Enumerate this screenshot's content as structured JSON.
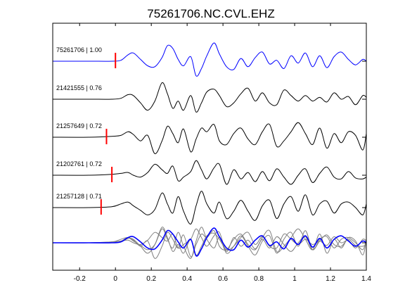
{
  "chart_data": {
    "type": "line",
    "title": "75261706.NC.CVL.EHZ",
    "xlabel": "",
    "ylabel": "",
    "xlim": [
      -0.35,
      1.4
    ],
    "x_ticks": [
      -0.2,
      0,
      0.2,
      0.4,
      0.6,
      0.8,
      1,
      1.2,
      1.4
    ],
    "x_tick_labels": [
      "-0.2",
      "0",
      "0.2",
      "0.4",
      "0.6",
      "0.8",
      "1",
      "1.2",
      "1.4"
    ],
    "grid": false,
    "colors": {
      "primary": "#0000ff",
      "secondary": "#000000",
      "stack": "#808080",
      "pick": "#ff0000"
    },
    "series": [
      {
        "name": "75261706 | 1.00",
        "pick_time": 0.0,
        "color": "#0000ff",
        "x": [
          -0.35,
          -0.15,
          -0.02,
          0.03,
          0.07,
          0.1,
          0.14,
          0.18,
          0.22,
          0.26,
          0.29,
          0.32,
          0.35,
          0.38,
          0.42,
          0.45,
          0.48,
          0.51,
          0.55,
          0.58,
          0.62,
          0.66,
          0.7,
          0.74,
          0.78,
          0.82,
          0.86,
          0.9,
          0.94,
          0.98,
          1.02,
          1.06,
          1.1,
          1.14,
          1.18,
          1.22,
          1.26,
          1.3,
          1.34,
          1.38,
          1.4
        ],
        "y": [
          0,
          0,
          0,
          0.05,
          0.35,
          0.45,
          0.1,
          -0.25,
          -0.3,
          0.2,
          0.85,
          0.7,
          0.1,
          -0.25,
          0.25,
          -0.8,
          -0.4,
          0.3,
          1.0,
          0.4,
          -0.3,
          -0.45,
          0.15,
          -0.3,
          0.2,
          0.5,
          -0.15,
          0.05,
          -0.4,
          0.3,
          -0.1,
          0.45,
          -0.3,
          0.3,
          -0.35,
          0.25,
          0.5,
          0.1,
          -0.2,
          0.1,
          0.0
        ]
      },
      {
        "name": "21421555 | 0.76",
        "pick_time": null,
        "color": "#000000",
        "x": [
          -0.35,
          -0.15,
          -0.02,
          0.03,
          0.07,
          0.1,
          0.14,
          0.18,
          0.22,
          0.26,
          0.29,
          0.32,
          0.35,
          0.38,
          0.42,
          0.45,
          0.48,
          0.51,
          0.55,
          0.58,
          0.62,
          0.66,
          0.7,
          0.74,
          0.78,
          0.82,
          0.86,
          0.9,
          0.94,
          0.98,
          1.02,
          1.06,
          1.1,
          1.14,
          1.18,
          1.22,
          1.26,
          1.3,
          1.34,
          1.38,
          1.4
        ],
        "y": [
          0,
          0,
          0,
          0.05,
          0.25,
          0.2,
          -0.2,
          -0.6,
          -0.1,
          0.9,
          0.3,
          -0.5,
          -0.1,
          -0.6,
          0.2,
          -0.7,
          -0.2,
          0.4,
          0.55,
          0.2,
          -0.4,
          -0.2,
          0.3,
          0.6,
          -0.1,
          0.35,
          -0.2,
          -0.3,
          0.5,
          0.2,
          -0.1,
          0.2,
          -0.1,
          0.1,
          -0.15,
          0.35,
          0.0,
          0.15,
          -0.3,
          0.2,
          0.1
        ]
      },
      {
        "name": "21257649 | 0.72",
        "pick_time": -0.05,
        "color": "#000000",
        "x": [
          -0.35,
          -0.15,
          -0.02,
          0.03,
          0.07,
          0.1,
          0.14,
          0.18,
          0.22,
          0.26,
          0.29,
          0.32,
          0.35,
          0.38,
          0.42,
          0.45,
          0.48,
          0.51,
          0.55,
          0.58,
          0.62,
          0.66,
          0.7,
          0.74,
          0.78,
          0.82,
          0.86,
          0.9,
          0.94,
          0.98,
          1.02,
          1.06,
          1.1,
          1.14,
          1.18,
          1.22,
          1.26,
          1.3,
          1.34,
          1.38,
          1.4
        ],
        "y": [
          0,
          0,
          0.05,
          0.1,
          0.3,
          0.15,
          -0.2,
          0.1,
          -0.9,
          -0.2,
          0.6,
          0.2,
          -0.3,
          0.45,
          -0.8,
          -0.1,
          0.5,
          0.3,
          0.7,
          -0.2,
          -0.4,
          0.2,
          0.5,
          -0.1,
          -0.4,
          0.3,
          0.7,
          -0.5,
          -0.2,
          0.3,
          0.8,
          0.2,
          -0.4,
          0.5,
          -0.6,
          0.2,
          -0.3,
          0.3,
          0.1,
          -0.7,
          0.2
        ]
      },
      {
        "name": "21202761 | 0.72",
        "pick_time": -0.02,
        "color": "#000000",
        "x": [
          -0.35,
          -0.15,
          -0.02,
          0.03,
          0.07,
          0.1,
          0.14,
          0.18,
          0.22,
          0.26,
          0.29,
          0.32,
          0.35,
          0.38,
          0.42,
          0.45,
          0.48,
          0.51,
          0.55,
          0.58,
          0.62,
          0.66,
          0.7,
          0.74,
          0.78,
          0.82,
          0.86,
          0.9,
          0.94,
          0.98,
          1.02,
          1.06,
          1.1,
          1.14,
          1.18,
          1.22,
          1.26,
          1.3,
          1.34,
          1.38,
          1.4
        ],
        "y": [
          0,
          0,
          0.05,
          0.1,
          0.15,
          0.0,
          -0.1,
          0.15,
          0.6,
          0.3,
          0.1,
          0.5,
          -0.3,
          -0.1,
          0.2,
          0.8,
          0.3,
          -0.2,
          0.4,
          0.6,
          -0.5,
          0.3,
          -0.2,
          0.15,
          -0.35,
          0.2,
          -0.3,
          0.35,
          -0.1,
          -0.5,
          0.0,
          0.35,
          -0.4,
          0.1,
          0.45,
          -0.1,
          -0.2,
          0.2,
          -0.15,
          -0.2,
          -0.1
        ]
      },
      {
        "name": "21257128 | 0.71",
        "pick_time": -0.08,
        "color": "#000000",
        "x": [
          -0.35,
          -0.15,
          -0.02,
          0.03,
          0.07,
          0.1,
          0.14,
          0.18,
          0.22,
          0.26,
          0.29,
          0.32,
          0.35,
          0.38,
          0.42,
          0.45,
          0.48,
          0.51,
          0.55,
          0.58,
          0.62,
          0.66,
          0.7,
          0.74,
          0.78,
          0.82,
          0.86,
          0.9,
          0.94,
          0.98,
          1.02,
          1.06,
          1.1,
          1.14,
          1.18,
          1.22,
          1.26,
          1.3,
          1.34,
          1.38,
          1.4
        ],
        "y": [
          0,
          0,
          0.05,
          0.2,
          0.3,
          0.1,
          -0.15,
          -0.4,
          -0.1,
          0.8,
          0.2,
          -0.3,
          0.6,
          -0.2,
          -0.9,
          0.1,
          0.9,
          0.2,
          -0.3,
          0.3,
          -0.6,
          -0.2,
          0.4,
          -0.2,
          -0.7,
          0.1,
          0.4,
          -0.6,
          0.2,
          0.6,
          -0.2,
          0.7,
          -0.4,
          0.2,
          0.35,
          -0.3,
          0.2,
          0.3,
          0.0,
          -0.4,
          0.2
        ]
      }
    ],
    "stack": {
      "name": "",
      "x": [
        -0.35,
        -0.15,
        -0.02,
        0.03,
        0.07,
        0.1,
        0.14,
        0.18,
        0.22,
        0.26,
        0.29,
        0.32,
        0.35,
        0.38,
        0.42,
        0.45,
        0.48,
        0.51,
        0.55,
        0.58,
        0.62,
        0.66,
        0.7,
        0.74,
        0.78,
        0.82,
        0.86,
        0.9,
        0.94,
        0.98,
        1.02,
        1.06,
        1.1,
        1.14,
        1.18,
        1.22,
        1.26,
        1.3,
        1.34,
        1.38,
        1.4
      ],
      "y": [
        0,
        0,
        0,
        0.05,
        0.3,
        0.35,
        0.05,
        -0.3,
        -0.35,
        0.15,
        0.7,
        0.5,
        0.05,
        -0.3,
        0.2,
        -0.75,
        -0.35,
        0.3,
        0.85,
        0.35,
        -0.3,
        -0.4,
        0.15,
        -0.25,
        0.15,
        0.4,
        -0.15,
        0.05,
        -0.35,
        0.25,
        -0.1,
        0.4,
        -0.25,
        0.25,
        -0.3,
        0.2,
        0.4,
        0.1,
        -0.2,
        0.1,
        0.0
      ]
    }
  }
}
